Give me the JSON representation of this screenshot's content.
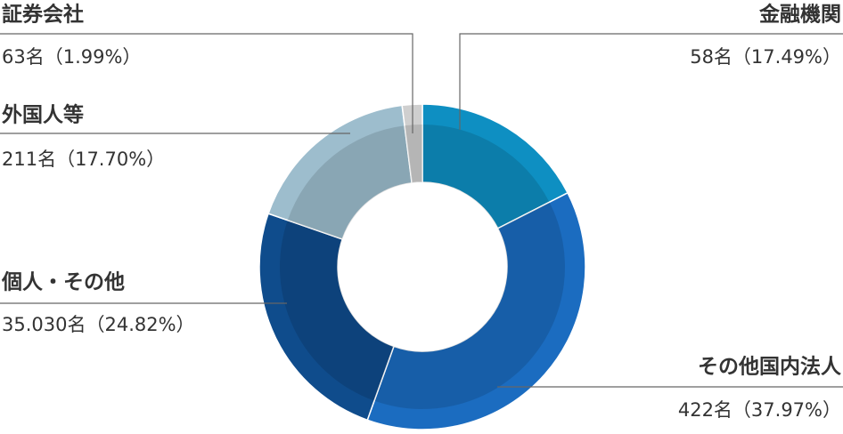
{
  "chart_data": {
    "type": "donut",
    "categories": [
      "金融機関",
      "その他国内法人",
      "個人・その他",
      "外国人等",
      "証券会社"
    ],
    "values": [
      17.49,
      37.97,
      24.82,
      17.7,
      1.99
    ],
    "value_labels": [
      "58名（17.49%）",
      "422名（37.97%）",
      "35.030名（24.82%）",
      "211名（17.70%）",
      "63名（1.99%）"
    ],
    "colors": [
      "#0e8fc2",
      "#1b6cc0",
      "#0f4c8c",
      "#9dbdcd",
      "#cfcfcf"
    ]
  }
}
